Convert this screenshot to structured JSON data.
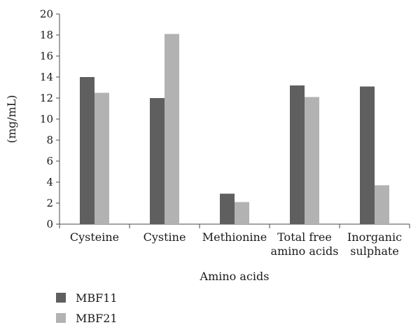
{
  "chart_data": {
    "type": "bar",
    "categories": [
      [
        "Cysteine"
      ],
      [
        "Cystine"
      ],
      [
        "Methionine"
      ],
      [
        "Total free",
        "amino acids"
      ],
      [
        "Inorganic",
        "sulphate"
      ]
    ],
    "series": [
      {
        "name": "MBF11",
        "color": "#5f5f5f",
        "values": [
          14.0,
          12.0,
          2.9,
          13.2,
          13.1
        ]
      },
      {
        "name": "MBF21",
        "color": "#b2b2b2",
        "values": [
          12.5,
          18.1,
          2.1,
          12.1,
          3.7
        ]
      }
    ],
    "xlabel": "Amino acids",
    "ylabel": "(mg/mL)",
    "ylim": [
      0,
      20
    ],
    "yticks": [
      0,
      2,
      4,
      6,
      8,
      10,
      12,
      14,
      16,
      18,
      20
    ],
    "grid": false,
    "legend_position": "bottom-left"
  }
}
